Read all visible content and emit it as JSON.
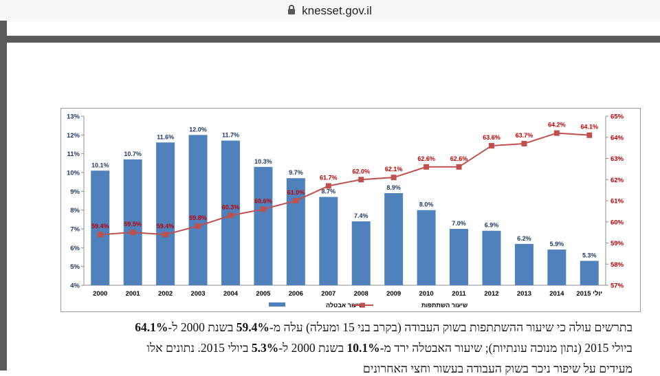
{
  "browser": {
    "url": "knesset.gov.il"
  },
  "chart_data": {
    "type": "bar+line",
    "categories": [
      "2000",
      "2001",
      "2002",
      "2003",
      "2004",
      "2005",
      "2006",
      "2007",
      "2008",
      "2009",
      "2010",
      "2011",
      "2012",
      "2013",
      "2014",
      "2015 יולי"
    ],
    "series": [
      {
        "name": "שיעור אבטלה",
        "type": "bar",
        "axis": "left",
        "values": [
          10.1,
          10.7,
          11.6,
          12.0,
          11.7,
          10.3,
          9.7,
          8.7,
          7.4,
          8.9,
          8.0,
          7.0,
          6.9,
          6.2,
          5.9,
          5.3
        ],
        "labels": [
          "10.1%",
          "10.7%",
          "11.6%",
          "12.0%",
          "11.7%",
          "10.3%",
          "9.7%",
          "8.7%",
          "7.4%",
          "8.9%",
          "8.0%",
          "7.0%",
          "6.9%",
          "6.2%",
          "5.9%",
          "5.3%"
        ],
        "color": "#4f81bd"
      },
      {
        "name": "שיעור השתתפות",
        "type": "line",
        "axis": "right",
        "values": [
          59.4,
          59.5,
          59.4,
          59.8,
          60.3,
          60.6,
          61.0,
          61.7,
          62.0,
          62.1,
          62.6,
          62.6,
          63.6,
          63.7,
          64.2,
          64.1
        ],
        "labels": [
          "59.4%",
          "59.5%",
          "59.4%",
          "59.8%",
          "60.3%",
          "60.6%",
          "61.0%",
          "61.7%",
          "62.0%",
          "62.1%",
          "62.6%",
          "62.6%",
          "63.6%",
          "63.7%",
          "64.2%",
          "64.1%"
        ],
        "color": "#c0504d"
      }
    ],
    "y_left": {
      "range": [
        4,
        13
      ],
      "ticks": [
        "4%",
        "5%",
        "6%",
        "7%",
        "8%",
        "9%",
        "10%",
        "11%",
        "12%",
        "13%"
      ],
      "color": "#1f3864"
    },
    "y_right": {
      "range": [
        57,
        65
      ],
      "ticks": [
        "57%",
        "58%",
        "59%",
        "60%",
        "61%",
        "62%",
        "63%",
        "64%",
        "65%"
      ],
      "color": "#c00000"
    },
    "legend": {
      "position": "bottom"
    }
  },
  "paragraph": {
    "line1": {
      "t1": "בתרשים עולה כי שיעור ההשתתפות בשוק העבודה (בקרב בני 15 ומעלה) עלה מ-",
      "b1": "59.4%",
      "t2": " בשנת 2000 ל-",
      "b2": "64.1%"
    },
    "line2": {
      "t1": "ביולי 2015 (נתון מנוכה עונתיות); שיעור האבטלה ירד מ-",
      "b1": "10.1%",
      "t2": " בשנת 2000 ל-",
      "b2": "5.3%",
      "t3": " ביולי 2015. נתונים אלו"
    },
    "line3": "מעידים על שיפור ניכר בשוק העבודה בעשור וחצי האחרונים"
  }
}
